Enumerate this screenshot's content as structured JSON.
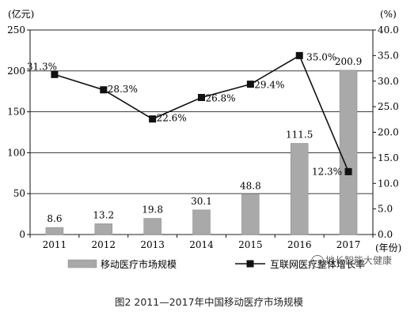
{
  "chart_data": {
    "type": "bar+line",
    "left_unit": "(亿元)",
    "right_unit": "(%)",
    "x_unit": "(年份)",
    "categories": [
      "2011",
      "2012",
      "2013",
      "2014",
      "2015",
      "2016",
      "2017"
    ],
    "series": [
      {
        "name": "移动医疗市场规模",
        "type": "bar",
        "axis": "left",
        "values": [
          8.6,
          13.2,
          19.8,
          30.1,
          48.8,
          111.5,
          200.9
        ],
        "labels": [
          "8.6",
          "13.2",
          "19.8",
          "30.1",
          "48.8",
          "111.5",
          "200.9"
        ]
      },
      {
        "name": "互联网医疗整体增长率",
        "type": "line",
        "axis": "right",
        "values": [
          31.3,
          28.3,
          22.6,
          26.8,
          29.4,
          35.0,
          12.3
        ],
        "labels": [
          "31.3%",
          "28.3%",
          "22.6%",
          "26.8%",
          "29.4%",
          "35.0%",
          "12.3%"
        ]
      }
    ],
    "left_ticks": [
      "0",
      "50",
      "100",
      "150",
      "200",
      "250"
    ],
    "right_ticks": [
      "0.0",
      "5.0",
      "10.0",
      "15.0",
      "20.0",
      "25.0",
      "30.0",
      "35.0",
      "40.0"
    ],
    "ylim_left": [
      0,
      250
    ],
    "ylim_right": [
      0,
      40
    ],
    "grid": "horizontal",
    "legend_position": "bottom",
    "colors": {
      "bar": "#a9a9a9",
      "line": "#111111"
    }
  },
  "caption": "图2 2011—2017年中国移动医疗市场规模",
  "watermark": "地长智能大健康"
}
